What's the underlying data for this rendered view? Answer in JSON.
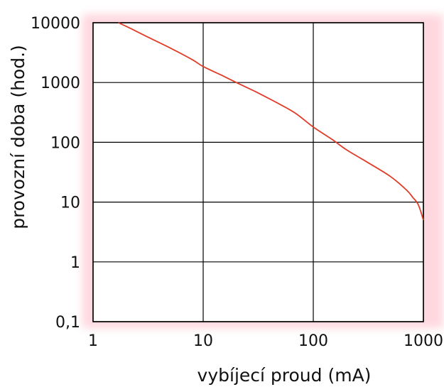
{
  "chart_data": {
    "type": "line",
    "title": "",
    "xlabel": "vybíjecí proud (mA)",
    "ylabel": "provozní doba (hod.)",
    "x_scale": "log",
    "y_scale": "log",
    "xlim": [
      1,
      1000
    ],
    "ylim": [
      0.1,
      10000
    ],
    "x_ticks": [
      1,
      10,
      100,
      1000
    ],
    "x_tick_labels": [
      "1",
      "10",
      "100",
      "1000"
    ],
    "y_ticks": [
      10000,
      1000,
      100,
      10,
      1,
      0.1
    ],
    "y_tick_labels": [
      "10000",
      "1000",
      "100",
      "10",
      "1",
      "0,1"
    ],
    "grid": true,
    "legend": "none",
    "line_color": "#e03c28",
    "series": [
      {
        "x": [
          1.7,
          2.2,
          3,
          5,
          8,
          10,
          15,
          20,
          30,
          50,
          70,
          100,
          150,
          200,
          300,
          500,
          700,
          800,
          900,
          1000
        ],
        "y": [
          10000,
          8000,
          6000,
          3800,
          2400,
          1850,
          1300,
          1000,
          700,
          430,
          300,
          180,
          110,
          75,
          48,
          27,
          16,
          12,
          9,
          5
        ]
      }
    ]
  }
}
